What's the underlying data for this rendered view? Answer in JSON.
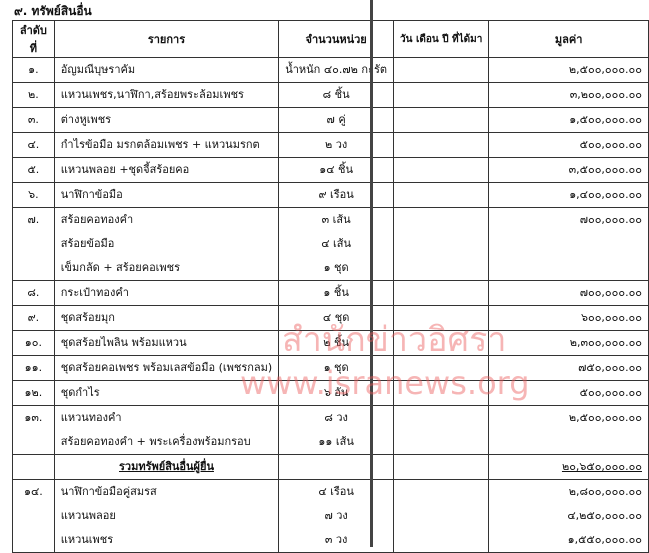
{
  "section_title": "๙. ทรัพย์สินอื่น",
  "headers": {
    "no": "ลำดับที่",
    "item": "รายการ",
    "qty": "จำนวนหน่วย",
    "date": "วัน เดือน ปี ที่ได้มา",
    "value": "มูลค่า"
  },
  "rows": [
    {
      "no": "๑.",
      "items": [
        "อัญมณีบุษราคัม"
      ],
      "qty": [
        "น้ำหนัก ๔๐.๗๒ กะรัต"
      ],
      "values": [
        "๒,๕๐๐,๐๐๐.๐๐"
      ]
    },
    {
      "no": "๒.",
      "items": [
        "แหวนเพชร,นาฬิกา,สร้อยพระล้อมเพชร"
      ],
      "qty": [
        "๘ ชิ้น"
      ],
      "values": [
        "๓,๒๐๐,๐๐๐.๐๐"
      ]
    },
    {
      "no": "๓.",
      "items": [
        "ต่างหูเพชร"
      ],
      "qty": [
        "๗ คู่"
      ],
      "values": [
        "๑,๕๐๐,๐๐๐.๐๐"
      ]
    },
    {
      "no": "๔.",
      "items": [
        "กำไรข้อมือ มรกตล้อมเพชร + แหวนมรกต"
      ],
      "qty": [
        "๒ วง"
      ],
      "values": [
        "๕๐๐,๐๐๐.๐๐"
      ]
    },
    {
      "no": "๕.",
      "items": [
        "แหวนพลอย +ชุดจี้สร้อยคอ"
      ],
      "qty": [
        "๑๔ ชิ้น"
      ],
      "values": [
        "๓,๕๐๐,๐๐๐.๐๐"
      ]
    },
    {
      "no": "๖.",
      "items": [
        "นาฬิกาข้อมือ"
      ],
      "qty": [
        "๙ เรือน"
      ],
      "values": [
        "๑,๔๐๐,๐๐๐.๐๐"
      ]
    },
    {
      "no": "๗.",
      "items": [
        "สร้อยคอทองคำ",
        "สร้อยข้อมือ",
        "เข็มกลัด + สร้อยคอเพชร"
      ],
      "qty": [
        "๓ เส้น",
        "๔ เส้น",
        "๑ ชุด"
      ],
      "values": [
        "๗๐๐,๐๐๐.๐๐"
      ]
    },
    {
      "no": "๘.",
      "items": [
        "กระเป๋าทองคำ"
      ],
      "qty": [
        "๑ ชิ้น"
      ],
      "values": [
        "๗๐๐,๐๐๐.๐๐"
      ]
    },
    {
      "no": "๙.",
      "items": [
        "ชุดสร้อยมุก"
      ],
      "qty": [
        "๔ ชุด"
      ],
      "values": [
        "๖๐๐,๐๐๐.๐๐"
      ]
    },
    {
      "no": "๑๐.",
      "items": [
        "ชุดสร้อยไพลิน พร้อมแหวน"
      ],
      "qty": [
        "๒ ชิ้น"
      ],
      "values": [
        "๒,๓๐๐,๐๐๐.๐๐"
      ]
    },
    {
      "no": "๑๑.",
      "items": [
        "ชุดสร้อยคอเพชร พร้อมเลสข้อมือ (เพชรกลม)"
      ],
      "qty": [
        "๑ ชุด"
      ],
      "values": [
        "๗๕๐,๐๐๐.๐๐"
      ]
    },
    {
      "no": "๑๒.",
      "items": [
        "ชุดกำไร"
      ],
      "qty": [
        "๖ อัน"
      ],
      "values": [
        "๕๐๐,๐๐๐.๐๐"
      ]
    },
    {
      "no": "๑๓.",
      "items": [
        "แหวนทองคำ",
        "สร้อยคอทองคำ + พระเครื่องพร้อมกรอบ"
      ],
      "qty": [
        "๘ วง",
        "๑๑ เส้น"
      ],
      "values": [
        "๒,๕๐๐,๐๐๐.๐๐"
      ]
    }
  ],
  "total": {
    "label": "รวมทรัพย์สินอื่นผู้ยื่น",
    "value": "๒๐,๖๕๐,๐๐๐.๐๐"
  },
  "spouse_rows": [
    {
      "no": "๑๔.",
      "items": [
        "นาฬิกาข้อมือคู่สมรส",
        "แหวนพลอย",
        "แหวนเพชร"
      ],
      "qty": [
        "๔ เรือน",
        "๗ วง",
        "๓ วง"
      ],
      "values": [
        "๒,๘๐๐,๐๐๐.๐๐",
        "๔,๒๕๐,๐๐๐.๐๐",
        "๑,๕๕๐,๐๐๐.๐๐"
      ]
    }
  ],
  "watermark": {
    "line1": "สำนักข่าวอิศรา",
    "line2": "www.isranews.org"
  }
}
